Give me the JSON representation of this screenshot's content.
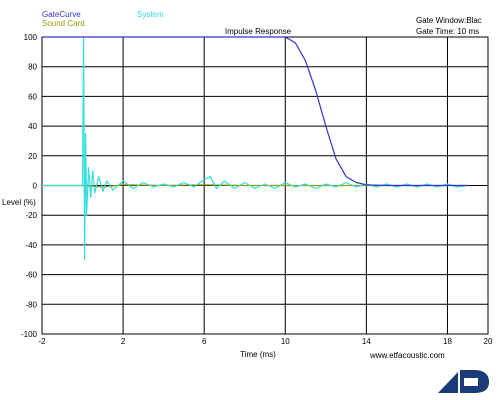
{
  "legend": {
    "gate_curve": "GateCurve",
    "system": "System",
    "sound_card": "Sound Card",
    "gate_curve_color": "#3333cc",
    "system_color": "#33dddd",
    "sound_card_color": "#999900"
  },
  "gate_info": {
    "window": "Gate Window:Blac",
    "time": "Gate Time: 10 ms"
  },
  "footer": {
    "url": "www.etfacoustic.com",
    "logo_icon": "etf-logo-icon",
    "logo_color": "#1a3a7a"
  },
  "chart_data": {
    "type": "line",
    "title": "Impulse Response",
    "xlabel": "Time (ms)",
    "ylabel": "Level (%)",
    "xlim": [
      -2,
      20
    ],
    "ylim": [
      -100,
      100
    ],
    "xticks": [
      -2,
      2,
      6,
      10,
      14,
      18,
      20
    ],
    "yticks": [
      100,
      80,
      60,
      40,
      20,
      0,
      -20,
      -40,
      -60,
      -80,
      -100
    ],
    "grid": true,
    "series": [
      {
        "name": "GateCurve",
        "color": "#3333cc",
        "x": [
          -2,
          10.0,
          10.5,
          11.0,
          11.5,
          12.0,
          12.5,
          13.0,
          13.5,
          14.0,
          15.0,
          16.0,
          17.0,
          18.0,
          19.0
        ],
        "y": [
          100,
          100,
          96,
          84,
          64,
          40,
          18,
          6,
          2,
          0.5,
          0,
          0,
          0,
          0,
          0
        ]
      },
      {
        "name": "System",
        "color": "#33dddd",
        "x": [
          -2.0,
          0.0,
          0.05,
          0.1,
          0.15,
          0.2,
          0.3,
          0.4,
          0.5,
          0.6,
          0.8,
          1.0,
          1.2,
          1.5,
          2.0,
          2.5,
          3.0,
          3.5,
          4.0,
          4.5,
          5.0,
          5.5,
          6.0,
          6.3,
          6.6,
          7.0,
          7.5,
          8.0,
          8.5,
          9.0,
          9.5,
          10.0,
          10.5,
          11.0,
          11.5,
          12.0,
          12.5,
          13.0,
          13.5,
          14.0,
          14.5,
          15.0,
          15.5,
          16.0,
          16.5,
          17.0,
          17.5,
          18.0,
          18.5,
          19.0
        ],
        "y": [
          0,
          0,
          100,
          -50,
          35,
          -20,
          12,
          -8,
          10,
          -5,
          6,
          -4,
          3,
          -3,
          3,
          -2,
          2,
          -1,
          1,
          -1,
          2,
          -1,
          4,
          6,
          -2,
          3,
          -2,
          2,
          -2,
          1,
          -2,
          2,
          -1,
          1,
          -2,
          1,
          -1,
          2,
          -1,
          1,
          -1,
          1,
          -1,
          1,
          -1,
          1,
          -1,
          1,
          -1,
          0
        ]
      },
      {
        "name": "Sound Card",
        "color": "#999900",
        "x": [
          -2.0,
          0.0,
          1.0,
          2.0,
          4.0,
          6.0,
          8.0,
          10.0,
          12.0,
          14.0,
          16.0,
          18.0,
          19.0
        ],
        "y": [
          0,
          0,
          -1,
          0.5,
          0,
          0.5,
          0,
          0,
          0,
          0,
          0,
          0,
          0
        ]
      }
    ]
  }
}
